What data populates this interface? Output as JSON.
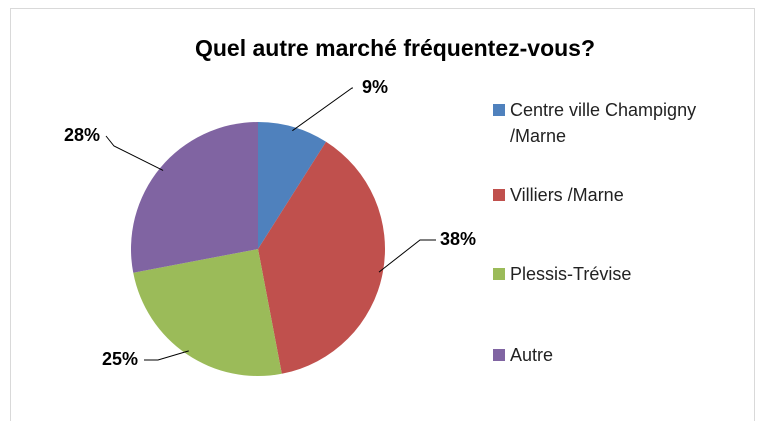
{
  "chart_data": {
    "type": "pie",
    "title": "Quel autre marché fréquentez-vous?",
    "categories": [
      "Centre ville Champigny /Marne",
      "Villiers /Marne",
      "Plessis-Trévise",
      "Autre"
    ],
    "values": [
      9,
      38,
      25,
      28
    ],
    "value_labels": [
      "9%",
      "38%",
      "25%",
      "28%"
    ],
    "colors": [
      "#4f81bd",
      "#c0504d",
      "#9bbb59",
      "#8064a2"
    ],
    "legend": "right"
  }
}
